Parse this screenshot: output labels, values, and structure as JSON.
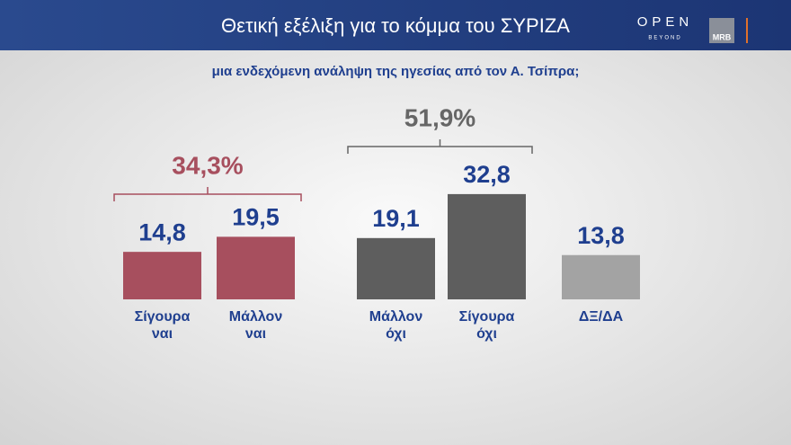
{
  "header": {
    "title": "Θετική εξέλιξη για το κόμμα του ΣΥΡΙΖΑ",
    "logo": "OPEN",
    "logo_sub": "BEYOND",
    "badge": "MRB"
  },
  "chart_data": {
    "type": "bar",
    "title": "μια ενδεχόμενη ανάληψη της ηγεσίας από τον Α. Τσίπρα;",
    "categories": [
      [
        "Σίγουρα",
        "ναι"
      ],
      [
        "Μάλλον",
        "ναι"
      ],
      [
        "Μάλλον",
        "όχι"
      ],
      [
        "Σίγουρα",
        "όχι"
      ],
      [
        "ΔΞ/ΔΑ"
      ]
    ],
    "values": [
      14.8,
      19.5,
      19.1,
      32.8,
      13.8
    ],
    "value_labels": [
      "14,8",
      "19,5",
      "19,1",
      "32,8",
      "13,8"
    ],
    "colors": [
      "#a74f5e",
      "#a74f5e",
      "#5e5e5e",
      "#5e5e5e",
      "#a3a3a3"
    ],
    "groups": [
      {
        "value": 34.3,
        "label": "34,3%",
        "color": "#a74f5e"
      },
      {
        "value": 51.9,
        "label": "51,9%",
        "color": "#666666"
      }
    ]
  }
}
